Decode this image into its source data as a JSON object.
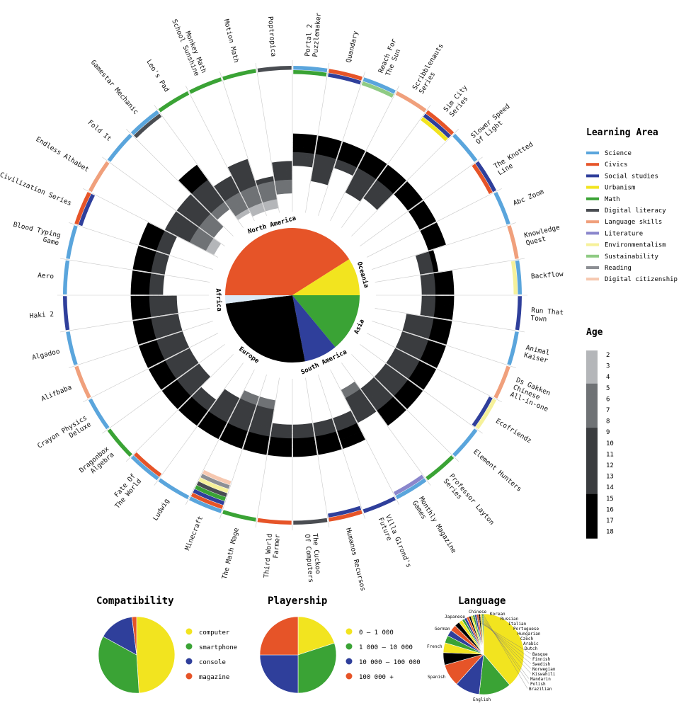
{
  "chart_data": [
    {
      "type": "radial",
      "games": [
        {
          "name": "Portal 2\nPuzzlemaker",
          "areas": [
            "Science",
            "Math"
          ],
          "age": [
            12,
            18
          ]
        },
        {
          "name": "Quandary",
          "areas": [
            "Civics",
            "Social studies"
          ],
          "age": [
            9,
            18
          ]
        },
        {
          "name": "Reach For\nThe Sun",
          "areas": [
            "Science",
            "Sustainability"
          ],
          "age": [
            13,
            18
          ]
        },
        {
          "name": "Scribblenauts\nSeries",
          "areas": [
            "Language skills"
          ],
          "age": [
            9,
            18
          ]
        },
        {
          "name": "Sim City\nSeries",
          "areas": [
            "Civics",
            "Social studies",
            "Urbanism"
          ],
          "age": [
            10,
            18
          ]
        },
        {
          "name": "Slower Speed\nOf Light",
          "areas": [
            "Science"
          ],
          "age": [
            15,
            18
          ]
        },
        {
          "name": "The Knotted\nLine",
          "areas": [
            "Social studies",
            "Civics"
          ],
          "age": [
            15,
            18
          ]
        },
        {
          "name": "Abc Zoom",
          "areas": [
            "Science"
          ],
          "age": [
            15,
            18
          ]
        },
        {
          "name": "Knowledge\nQuest",
          "areas": [
            "Language skills"
          ],
          "age": [
            12,
            15
          ]
        },
        {
          "name": "Backflow",
          "areas": [
            "Science",
            "Environmentalism"
          ],
          "age": [
            12,
            18
          ]
        },
        {
          "name": "Run That\nTown",
          "areas": [
            "Social studies"
          ],
          "age": [
            12,
            18
          ]
        },
        {
          "name": "Animal\nKaiser",
          "areas": [
            "Science"
          ],
          "age": [
            9,
            18
          ]
        },
        {
          "name": "Ds Gakken\nChinese\nAll-in-one",
          "areas": [
            "Language skills"
          ],
          "age": [
            9,
            18
          ]
        },
        {
          "name": "Ecofriendz",
          "areas": [
            "Environmentalism",
            "Social studies"
          ],
          "age": [
            9,
            18
          ]
        },
        {
          "name": "Element Hunters",
          "areas": [
            "Science"
          ],
          "age": [
            9,
            18
          ]
        },
        {
          "name": "Professor Layton\nSeries",
          "areas": [
            "Math"
          ],
          "age": [
            9,
            18
          ]
        },
        {
          "name": "Monthly Magazine\nGames",
          "areas": [
            "Science",
            "Literature"
          ],
          "age": [
            7,
            14
          ]
        },
        {
          "name": "Villa Girond's\nFuture",
          "areas": [
            "Social studies"
          ],
          "age": [
            12,
            18
          ]
        },
        {
          "name": "Humanos Recursos",
          "areas": [
            "Civics",
            "Social studies"
          ],
          "age": [
            12,
            18
          ]
        },
        {
          "name": "The Cuckoo\nOf Computers",
          "areas": [
            "Digital literacy"
          ],
          "age": [
            12,
            18
          ]
        },
        {
          "name": "Third World\nFarmer",
          "areas": [
            "Civics"
          ],
          "age": [
            12,
            18
          ]
        },
        {
          "name": "The Math Mage",
          "areas": [
            "Math"
          ],
          "age": [
            7,
            18
          ]
        },
        {
          "name": "Minecraft",
          "areas": [
            "Science",
            "Civics",
            "Social studies",
            "Math",
            "Digital literacy",
            "Environmentalism",
            "Reading",
            "Digital citizenship"
          ],
          "age": [
            7,
            18
          ]
        },
        {
          "name": "Ludwig",
          "areas": [
            "Science"
          ],
          "age": [
            9,
            18
          ]
        },
        {
          "name": "Fate Of\nThe World",
          "areas": [
            "Science",
            "Civics"
          ],
          "age": [
            12,
            18
          ]
        },
        {
          "name": "Dragonbox\nAlgebra",
          "areas": [
            "Math"
          ],
          "age": [
            9,
            18
          ]
        },
        {
          "name": "Crayon Physics\nDeluxe",
          "areas": [
            "Science"
          ],
          "age": [
            9,
            18
          ]
        },
        {
          "name": "Alifbaba",
          "areas": [
            "Language skills"
          ],
          "age": [
            9,
            18
          ]
        },
        {
          "name": "Algadoo",
          "areas": [
            "Science"
          ],
          "age": [
            9,
            18
          ]
        },
        {
          "name": "Haki 2",
          "areas": [
            "Social studies"
          ],
          "age": [
            9,
            18
          ]
        },
        {
          "name": "Aero",
          "areas": [
            "Science"
          ],
          "age": [
            12,
            18
          ]
        },
        {
          "name": "Blood Typing\nGame",
          "areas": [
            "Science"
          ],
          "age": [
            12,
            18
          ]
        },
        {
          "name": "Civilization Series",
          "areas": [
            "Civics",
            "Social studies"
          ],
          "age": [
            12,
            18
          ]
        },
        {
          "name": "Endless Alhabet",
          "areas": [
            "Language skills"
          ],
          "age": [
            3,
            14
          ]
        },
        {
          "name": "Fold It",
          "areas": [
            "Science"
          ],
          "age": [
            5,
            14
          ]
        },
        {
          "name": "Gamestar Mechanic",
          "areas": [
            "Science",
            "Digital literacy"
          ],
          "age": [
            7,
            18
          ]
        },
        {
          "name": "Leo's Pad",
          "areas": [
            "Math"
          ],
          "age": [
            4,
            12
          ]
        },
        {
          "name": "Monkey Math\nSchool Sunshine",
          "areas": [
            "Math"
          ],
          "age": [
            3,
            14
          ]
        },
        {
          "name": "Motion Math",
          "areas": [
            "Math"
          ],
          "age": [
            3,
            9
          ]
        },
        {
          "name": "Poptropica",
          "areas": [
            "Digital literacy"
          ],
          "age": [
            6,
            12
          ]
        }
      ],
      "regions": [
        {
          "name": "North America",
          "value": 41,
          "color": "#e65428"
        },
        {
          "name": "Oceania",
          "value": 9,
          "color": "#f2e41f"
        },
        {
          "name": "Asia",
          "value": 14,
          "color": "#3aa335"
        },
        {
          "name": "South America",
          "value": 8,
          "color": "#2f3f9b"
        },
        {
          "name": "Europe",
          "value": 26,
          "color": "#000000"
        },
        {
          "name": "Africa",
          "value": 2,
          "color": "#dbe9f5"
        }
      ]
    },
    {
      "type": "pie",
      "title": "Compatibility",
      "slices": [
        {
          "label": "computer",
          "value": 49,
          "color": "#f2e41f"
        },
        {
          "label": "smartphone",
          "value": 34,
          "color": "#3aa335"
        },
        {
          "label": "console",
          "value": 15,
          "color": "#2f3f9b"
        },
        {
          "label": "magazine",
          "value": 2,
          "color": "#e65428"
        }
      ]
    },
    {
      "type": "pie",
      "title": "Playership",
      "slices": [
        {
          "label": "0 – 1 000",
          "value": 20,
          "color": "#f2e41f"
        },
        {
          "label": "1 000 – 10 000",
          "value": 30,
          "color": "#3aa335"
        },
        {
          "label": "10 000 – 100 000",
          "value": 25,
          "color": "#2f3f9b"
        },
        {
          "label": "100 000 +",
          "value": 25,
          "color": "#e65428"
        }
      ]
    },
    {
      "type": "pie",
      "title": "Language",
      "slices": [
        {
          "label": "English",
          "value": 39,
          "color": "#f2e41f"
        },
        {
          "label": "Spanish",
          "value": 13,
          "color": "#3aa335"
        },
        {
          "label": "French",
          "value": 10,
          "color": "#2f3f9b"
        },
        {
          "label": "German",
          "value": 9,
          "color": "#e65428"
        },
        {
          "label": "Japanese",
          "value": 5,
          "color": "#000000"
        },
        {
          "label": "Chinese",
          "value": 4,
          "color": "#f2e41f"
        },
        {
          "label": "Korean",
          "value": 3,
          "color": "#3aa335"
        },
        {
          "label": "Russian",
          "value": 2.5,
          "color": "#2f3f9b"
        },
        {
          "label": "Italian",
          "value": 2.5,
          "color": "#e65428"
        },
        {
          "label": "Portuguese",
          "value": 2,
          "color": "#000000"
        },
        {
          "label": "Hungarian",
          "value": 1.5,
          "color": "#f2e41f"
        },
        {
          "label": "Czech",
          "value": 1,
          "color": "#3aa335"
        },
        {
          "label": "Arabic",
          "value": 1,
          "color": "#2f3f9b"
        },
        {
          "label": "Dutch",
          "value": 1,
          "color": "#e65428"
        },
        {
          "label": "Basque",
          "value": 0.8,
          "color": "#000000"
        },
        {
          "label": "Finnish",
          "value": 0.8,
          "color": "#f2e41f"
        },
        {
          "label": "Swedish",
          "value": 0.8,
          "color": "#3aa335"
        },
        {
          "label": "Norwegian",
          "value": 0.8,
          "color": "#2f3f9b"
        },
        {
          "label": "Kiswahili",
          "value": 0.8,
          "color": "#e65428"
        },
        {
          "label": "Mandarin",
          "value": 0.7,
          "color": "#000000"
        },
        {
          "label": "Polish",
          "value": 0.7,
          "color": "#f2e41f"
        },
        {
          "label": "Brazilian",
          "value": 0.6,
          "color": "#3aa335"
        }
      ]
    }
  ],
  "legend": {
    "learning_area_title": "Learning Area",
    "areas": [
      {
        "name": "Science",
        "color": "#5aa5dc"
      },
      {
        "name": "Civics",
        "color": "#e65428"
      },
      {
        "name": "Social studies",
        "color": "#2f3f9b"
      },
      {
        "name": "Urbanism",
        "color": "#f2e41f"
      },
      {
        "name": "Math",
        "color": "#3aa335"
      },
      {
        "name": "Digital literacy",
        "color": "#4a4d52"
      },
      {
        "name": "Language skills",
        "color": "#f0a07c"
      },
      {
        "name": "Literature",
        "color": "#8a86cc"
      },
      {
        "name": "Environmentalism",
        "color": "#f6f19a"
      },
      {
        "name": "Sustainability",
        "color": "#8fcb84"
      },
      {
        "name": "Reading",
        "color": "#8c8f94"
      },
      {
        "name": "Digital citizenship",
        "color": "#f6c8b0"
      }
    ],
    "age_title": "Age",
    "ages": [
      2,
      3,
      4,
      5,
      6,
      7,
      8,
      9,
      10,
      11,
      12,
      13,
      14,
      15,
      16,
      17,
      18
    ],
    "age_colors": [
      "#b4b6b9",
      "#b4b6b9",
      "#b4b6b9",
      "#6f7275",
      "#6f7275",
      "#6f7275",
      "#6f7275",
      "#3a3c3f",
      "#3a3c3f",
      "#3a3c3f",
      "#3a3c3f",
      "#3a3c3f",
      "#3a3c3f",
      "#000000",
      "#000000",
      "#000000",
      "#000000"
    ]
  }
}
